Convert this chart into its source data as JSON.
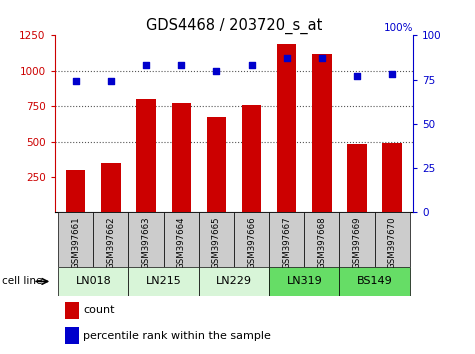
{
  "title": "GDS4468 / 203720_s_at",
  "samples": [
    "GSM397661",
    "GSM397662",
    "GSM397663",
    "GSM397664",
    "GSM397665",
    "GSM397666",
    "GSM397667",
    "GSM397668",
    "GSM397669",
    "GSM397670"
  ],
  "bar_values": [
    300,
    350,
    800,
    770,
    675,
    760,
    1190,
    1120,
    480,
    490
  ],
  "percentile_values": [
    74,
    74,
    83,
    83,
    80,
    83,
    87,
    87,
    77,
    78
  ],
  "cell_lines": [
    {
      "name": "LN018",
      "samples": [
        "GSM397661",
        "GSM397662"
      ],
      "color": "#d8f5d8"
    },
    {
      "name": "LN215",
      "samples": [
        "GSM397663",
        "GSM397664"
      ],
      "color": "#d8f5d8"
    },
    {
      "name": "LN229",
      "samples": [
        "GSM397665",
        "GSM397666"
      ],
      "color": "#d8f5d8"
    },
    {
      "name": "LN319",
      "samples": [
        "GSM397667",
        "GSM397668"
      ],
      "color": "#66dd66"
    },
    {
      "name": "BS149",
      "samples": [
        "GSM397669",
        "GSM397670"
      ],
      "color": "#66dd66"
    }
  ],
  "bar_color": "#cc0000",
  "dot_color": "#0000cc",
  "ylim_left": [
    0,
    1250
  ],
  "ylim_right": [
    0,
    100
  ],
  "yticks_left": [
    250,
    500,
    750,
    1000,
    1250
  ],
  "yticks_right": [
    0,
    25,
    50,
    75,
    100
  ],
  "grid_values": [
    500,
    750,
    1000
  ],
  "color_left": "#cc0000",
  "color_right": "#0000cc",
  "bar_width": 0.55,
  "sample_bg_color": "#cccccc",
  "legend_items": [
    {
      "label": "count",
      "color": "#cc0000"
    },
    {
      "label": "percentile rank within the sample",
      "color": "#0000cc"
    }
  ]
}
